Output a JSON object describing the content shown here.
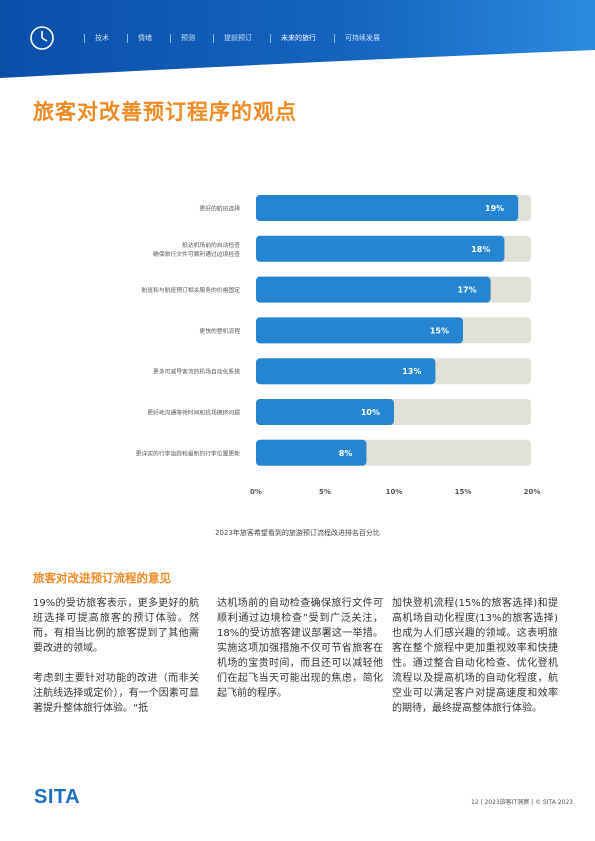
{
  "header": {
    "nav": [
      "技术",
      "情绪",
      "预测",
      "提前预订",
      "未来的旅行",
      "可持续发展"
    ],
    "active_index": 4
  },
  "title": "旅客对改善预订程序的观点",
  "chart_data": {
    "type": "bar",
    "orientation": "horizontal",
    "categories": [
      "更好的航班选择",
      "抵达机场前的自动检查\n确保旅行文件可顺利通过边境检查",
      "航班和与航班预订相关服务的价格固定",
      "更快的登机流程",
      "更多可减导客流的机场自动化系统",
      "更好地沟通等待时间和机场拥挤问题",
      "更详实的行李追踪和最新的行李位置更新"
    ],
    "values": [
      19,
      18,
      17,
      15,
      13,
      10,
      8
    ],
    "value_labels": [
      "19%",
      "18%",
      "17%",
      "15%",
      "13%",
      "10%",
      "8%"
    ],
    "xlim": [
      0,
      20
    ],
    "ticks": [
      "0%",
      "5%",
      "10%",
      "15%",
      "20%"
    ],
    "caption": "2023年旅客希望看到的旅游预订流程改进排名百分比",
    "bar_color": "#2585d0",
    "track_color": "#e2e1d8"
  },
  "section_title": "旅客对改进预订流程的意见",
  "body": {
    "col1_p1": "19%的受访旅客表示，更多更好的航班选择可提高旅客的预订体验。然而，有相当比例的旅客提到了其他需要改进的领域。",
    "col1_p2": "考虑到主要针对功能的改进（而非关注航线选择或定价），有一个因素可显著提升整体旅行体验。“抵",
    "col2_p1": "达机场前的自动检查确保旅行文件可顺利通过边境检查”受到广泛关注，18%的受访旅客建议部署这一举措。实施这项加强措施不仅可节省旅客在机场的宝贵时间，而且还可以减轻他们在起飞当天可能出现的焦虑，简化起飞前的程序。",
    "col3_p1": "加快登机流程(15%的旅客选择)和提高机场自动化程度(13%的旅客选择)也成为人们感兴趣的领域。这表明旅客在整个旅程中更加重视效率和快捷性。通过整合自动化检查、优化登机流程以及提高机场的自动化程度，航空业可以满足客户对提高速度和效率的期待，最终提高整体旅行体验。"
  },
  "footer": {
    "logo": "SITA",
    "page_info": "12 | 2023旅客IT洞察 | © SITA 2023"
  }
}
